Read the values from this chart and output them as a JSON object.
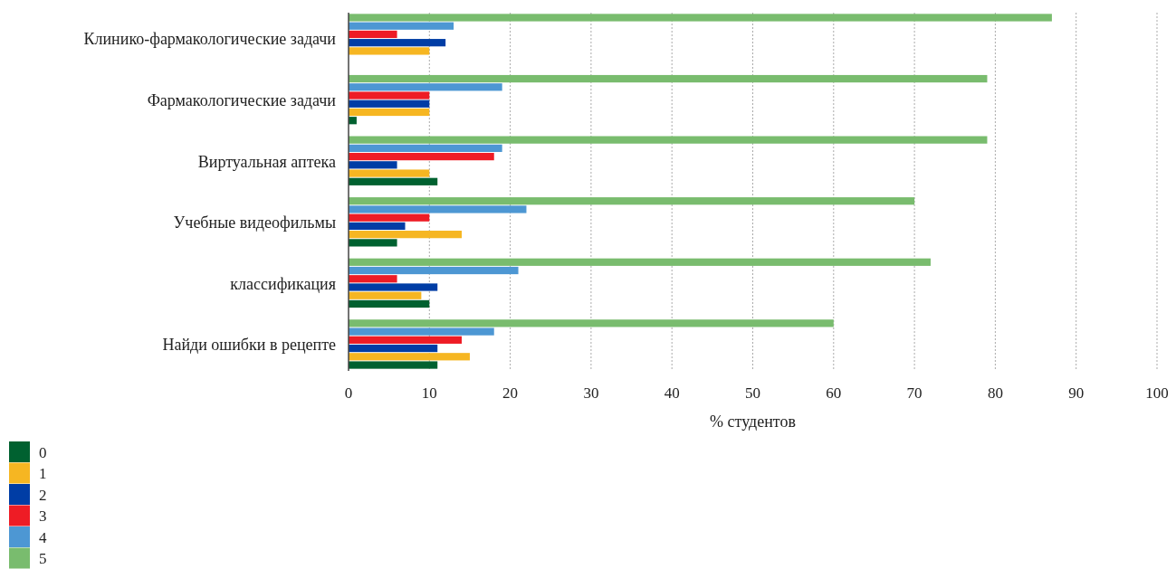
{
  "chart_data": {
    "type": "bar",
    "orientation": "horizontal",
    "xlabel": "% студентов",
    "categories": [
      "Клинико-фармакологические задачи",
      "Фармакологические задачи",
      "Виртуальная аптека",
      "Учебные видеофильмы",
      "классификация",
      "Найди ошибки в рецепте"
    ],
    "series": [
      {
        "name": "0",
        "color": "#006130",
        "values": [
          0,
          1,
          11,
          6,
          10,
          11
        ]
      },
      {
        "name": "1",
        "color": "#f6b622",
        "values": [
          10,
          10,
          10,
          14,
          9,
          15
        ]
      },
      {
        "name": "2",
        "color": "#003da5",
        "values": [
          12,
          10,
          6,
          7,
          11,
          11
        ]
      },
      {
        "name": "3",
        "color": "#ee1c25",
        "values": [
          6,
          10,
          18,
          10,
          6,
          14
        ]
      },
      {
        "name": "4",
        "color": "#4d97d3",
        "values": [
          13,
          19,
          19,
          22,
          21,
          18
        ]
      },
      {
        "name": "5",
        "color": "#79bc6e",
        "values": [
          87,
          79,
          79,
          70,
          72,
          60
        ]
      }
    ],
    "xlim": [
      0,
      100
    ],
    "xticks": [
      0,
      10,
      20,
      30,
      40,
      50,
      60,
      70,
      80,
      90,
      100
    ],
    "grid": "x",
    "legend": "bottom left"
  }
}
